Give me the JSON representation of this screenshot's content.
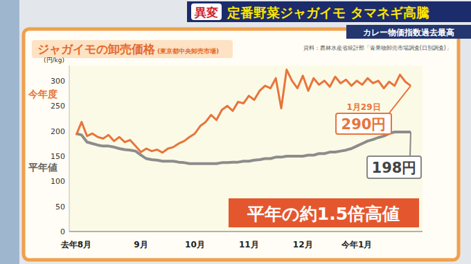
{
  "header": {
    "tag": "異変",
    "headline": "定番野菜ジャガイモ タマネギ高騰",
    "subheadline": "カレー物価指数過去最高"
  },
  "chart_data": {
    "type": "line",
    "title": "ジャガイモの卸売価格",
    "subtitle": "(東京都中央卸売市場)",
    "source": "資料：農林水産省統計部「青果物卸売市場調査(日別調査)」",
    "y_label": "(円/kg)",
    "categories": [
      "去年8月",
      null,
      null,
      null,
      null,
      null,
      null,
      null,
      null,
      null,
      null,
      null,
      "9月",
      null,
      null,
      null,
      null,
      null,
      null,
      null,
      null,
      null,
      "10月",
      null,
      null,
      null,
      null,
      null,
      null,
      null,
      null,
      null,
      "11月",
      null,
      null,
      null,
      null,
      null,
      null,
      null,
      null,
      null,
      "12月",
      null,
      null,
      null,
      null,
      null,
      null,
      null,
      null,
      null,
      "今年1月",
      null,
      null,
      null,
      null,
      null,
      null,
      null,
      null,
      null,
      null
    ],
    "series": [
      {
        "name": "今年度",
        "color": "#e8743b",
        "values": [
          192,
          218,
          190,
          195,
          188,
          185,
          192,
          180,
          188,
          178,
          182,
          170,
          158,
          165,
          160,
          163,
          157,
          165,
          168,
          175,
          180,
          188,
          195,
          210,
          218,
          232,
          222,
          242,
          250,
          240,
          258,
          255,
          270,
          262,
          280,
          290,
          285,
          305,
          245,
          322,
          300,
          285,
          310,
          280,
          305,
          292,
          300,
          288,
          308,
          295,
          302,
          290,
          300,
          292,
          305,
          295,
          300,
          285,
          298,
          290,
          312,
          298,
          290
        ]
      },
      {
        "name": "平年値",
        "color": "#8c8c8c",
        "values": [
          195,
          192,
          178,
          175,
          172,
          170,
          170,
          168,
          165,
          163,
          162,
          160,
          152,
          145,
          143,
          142,
          140,
          140,
          140,
          138,
          137,
          135,
          135,
          135,
          135,
          135,
          135,
          137,
          137,
          138,
          138,
          140,
          140,
          142,
          143,
          145,
          145,
          148,
          148,
          150,
          150,
          150,
          150,
          152,
          152,
          155,
          155,
          158,
          158,
          160,
          162,
          165,
          170,
          175,
          180,
          183,
          187,
          190,
          195,
          198,
          198,
          198,
          198
        ]
      }
    ],
    "ylim": [
      0,
      330
    ],
    "yticks": [
      0,
      50,
      100,
      150,
      200,
      250,
      300
    ],
    "grid": false,
    "annotations": [
      "1月29日",
      "290円",
      "198円",
      "平年の約1.5倍高値"
    ]
  }
}
